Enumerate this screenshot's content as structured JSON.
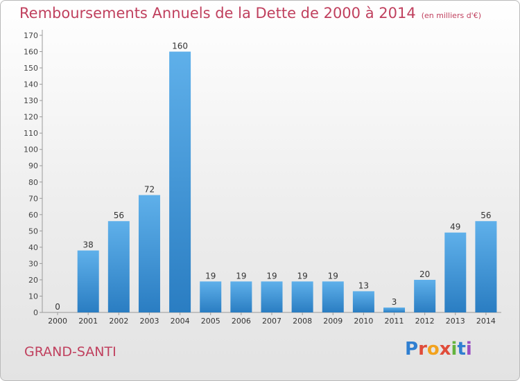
{
  "title": "Remboursements Annuels de la Dette de 2000 à 2014",
  "unit": "(en milliers d'€)",
  "commune": "GRAND-SANTI",
  "logo": {
    "text": "Proxiti",
    "letters": [
      "P",
      "r",
      "o",
      "x",
      "i",
      "t",
      "i"
    ],
    "colors": [
      "#2f7fd1",
      "#e04c3a",
      "#f2a21e",
      "#e04c3a",
      "#63b33d",
      "#2f7fd1",
      "#9a4dc1"
    ]
  },
  "colors": {
    "title": "#c0405e",
    "bar_top": "#5fb0ea",
    "bar_bottom": "#2a7dc2"
  },
  "chart_data": {
    "type": "bar",
    "categories": [
      "2000",
      "2001",
      "2002",
      "2003",
      "2004",
      "2005",
      "2006",
      "2007",
      "2008",
      "2009",
      "2010",
      "2011",
      "2012",
      "2013",
      "2014"
    ],
    "values": [
      0,
      38,
      56,
      72,
      160,
      19,
      19,
      19,
      19,
      19,
      13,
      3,
      20,
      49,
      56
    ],
    "ylim": [
      0,
      170
    ],
    "yticks": [
      0,
      10,
      20,
      30,
      40,
      50,
      60,
      70,
      80,
      90,
      100,
      110,
      120,
      130,
      140,
      150,
      160,
      170
    ],
    "grid": false,
    "data_labels": true
  }
}
